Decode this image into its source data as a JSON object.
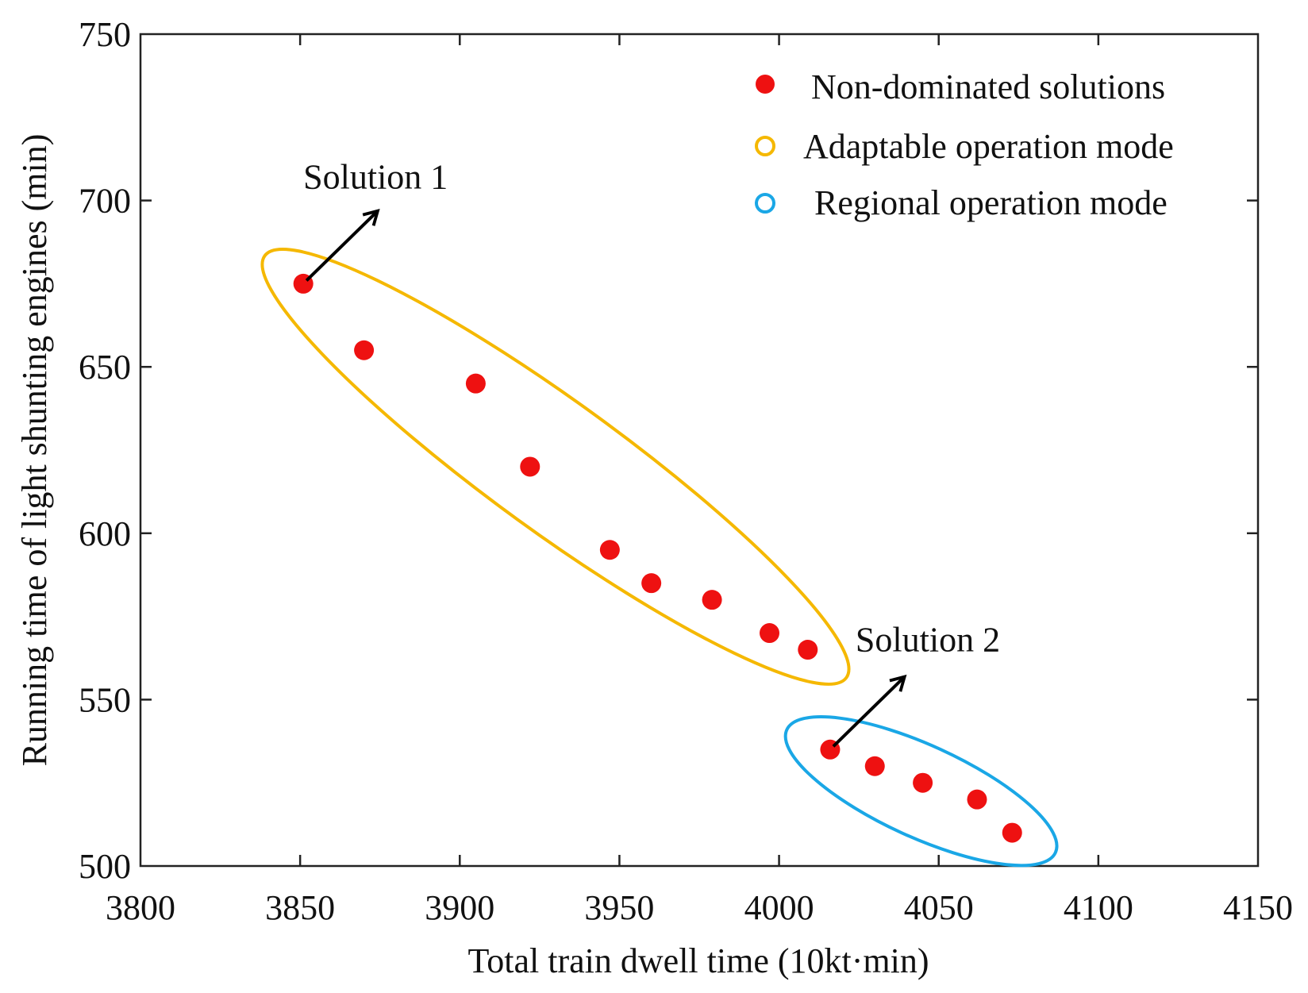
{
  "chart_data": {
    "type": "scatter",
    "title": "",
    "xlabel": "Total train dwell time (10kt·min)",
    "ylabel": "Running time of light shunting engines (min)",
    "xlim": [
      3800,
      4150
    ],
    "ylim": [
      500,
      750
    ],
    "xticks": [
      3800,
      3850,
      3900,
      3950,
      4000,
      4050,
      4100,
      4150
    ],
    "yticks": [
      500,
      550,
      600,
      650,
      700,
      750
    ],
    "grid": false,
    "legend_position": "top-right",
    "colors": {
      "points": "#ee1111",
      "adaptable": "#f5b800",
      "regional": "#1aa7e6",
      "arrow": "#000000"
    },
    "series": [
      {
        "name": "Non-dominated solutions",
        "points": [
          [
            3851,
            675
          ],
          [
            3870,
            655
          ],
          [
            3905,
            645
          ],
          [
            3922,
            620
          ],
          [
            3947,
            595
          ],
          [
            3960,
            585
          ],
          [
            3979,
            580
          ],
          [
            3997,
            570
          ],
          [
            4009,
            565
          ],
          [
            4016,
            535
          ],
          [
            4030,
            530
          ],
          [
            4045,
            525
          ],
          [
            4062,
            520
          ],
          [
            4073,
            510
          ]
        ]
      }
    ],
    "groups": [
      {
        "name": "Adaptable operation mode",
        "point_indices": [
          0,
          1,
          2,
          3,
          4,
          5,
          6,
          7,
          8
        ]
      },
      {
        "name": "Regional operation mode",
        "point_indices": [
          9,
          10,
          11,
          12,
          13
        ]
      }
    ],
    "legend": [
      {
        "label": "Non-dominated solutions",
        "marker": "filled-circle"
      },
      {
        "label": "Adaptable operation mode",
        "marker": "open-circle"
      },
      {
        "label": "Regional operation mode",
        "marker": "open-circle"
      }
    ],
    "annotations": [
      {
        "text": "Solution 1",
        "points_to": [
          3851,
          675
        ]
      },
      {
        "text": "Solution 2",
        "points_to": [
          4016,
          535
        ]
      }
    ]
  }
}
